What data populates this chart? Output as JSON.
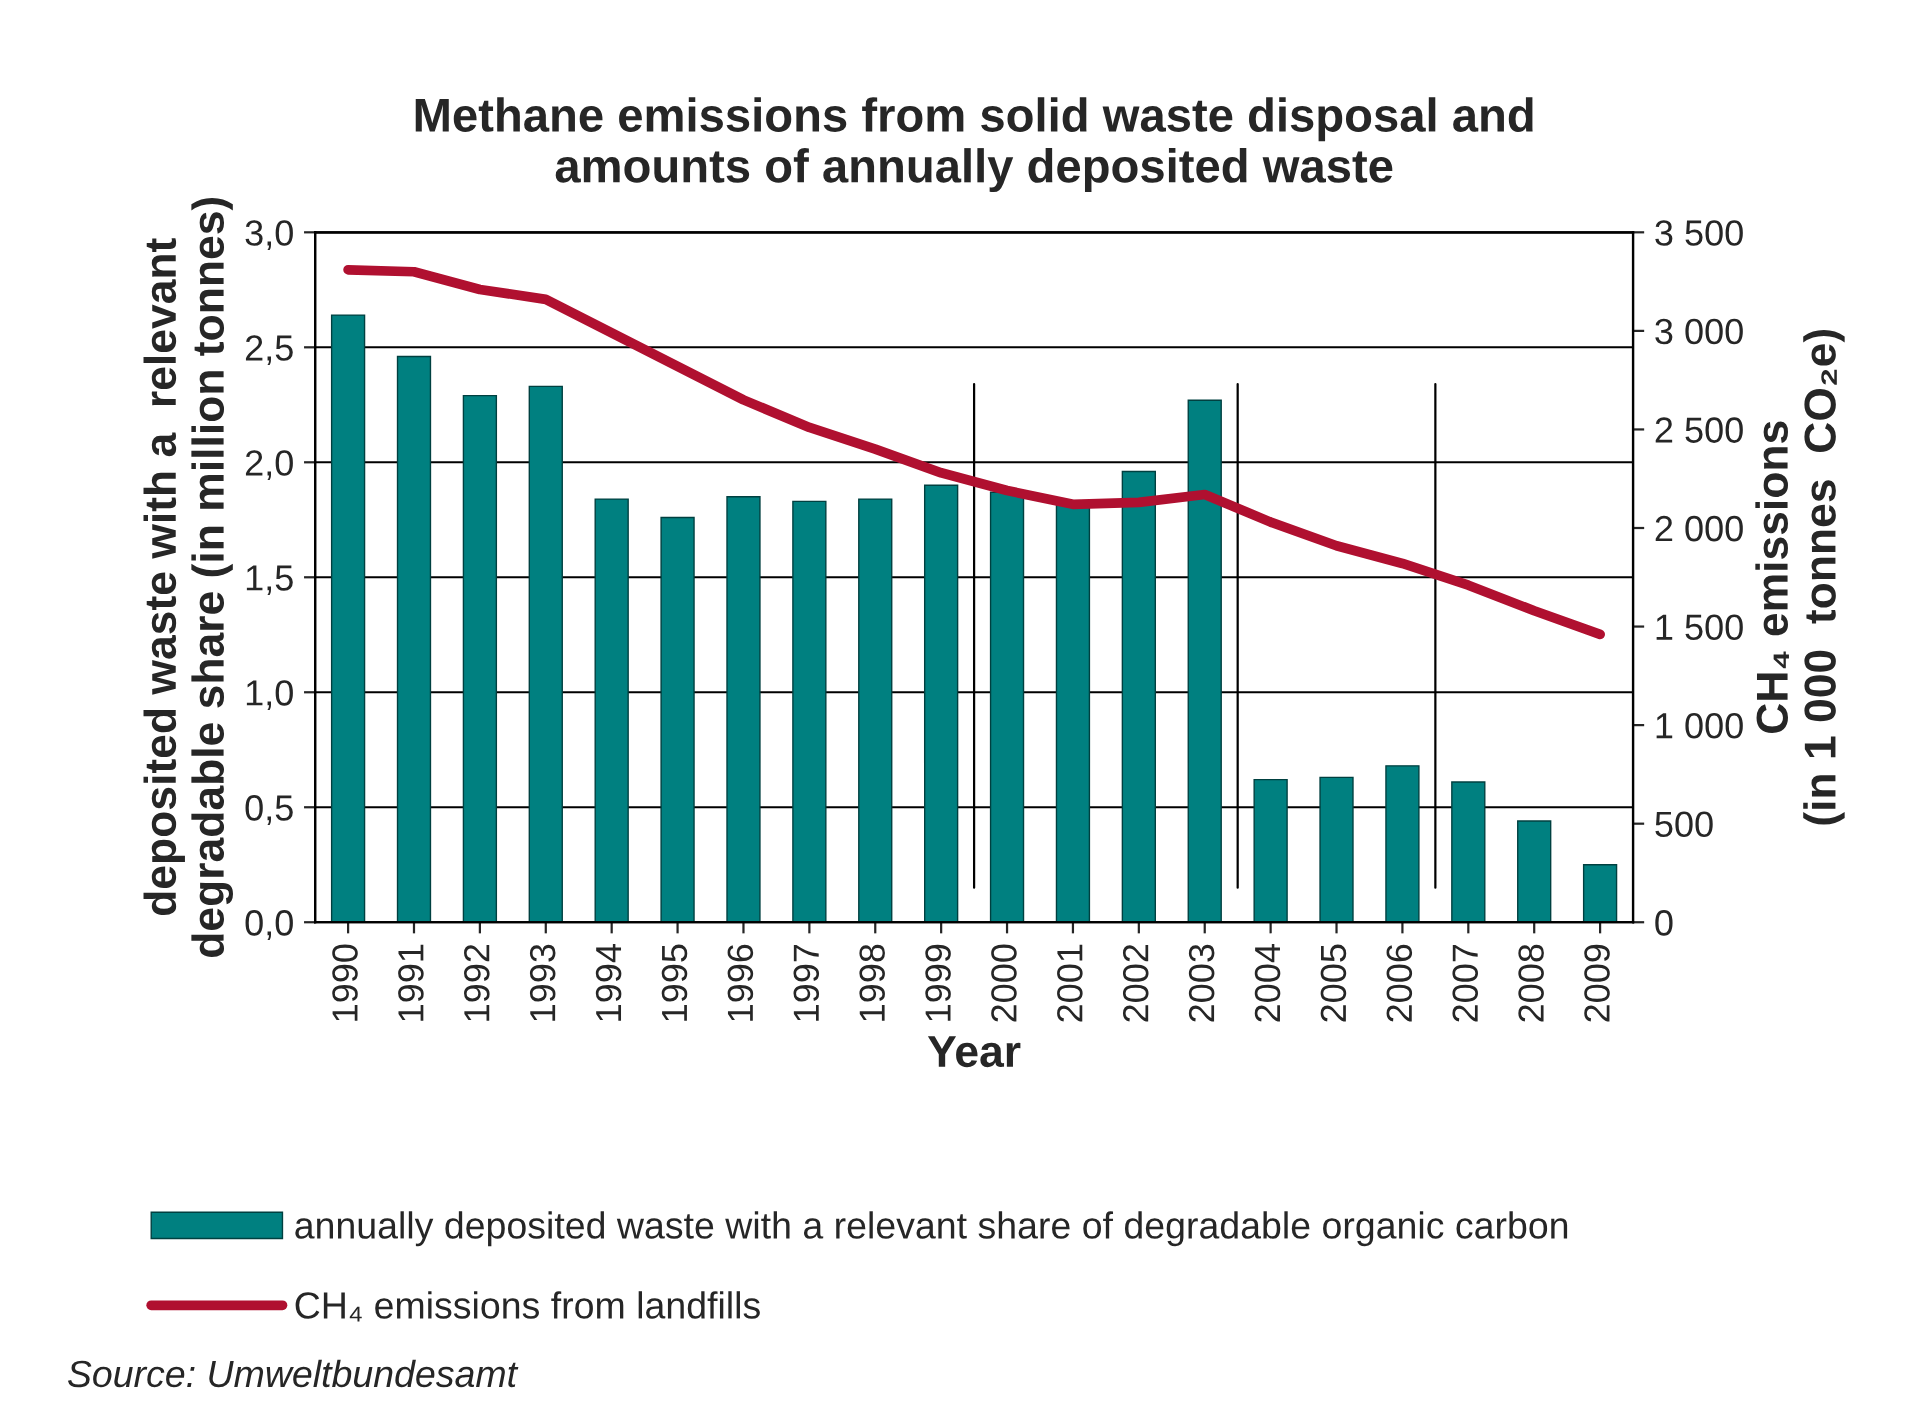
{
  "chart_data": {
    "type": "bar",
    "title": "Methane emissions from solid waste disposal and\namounts of annually deposited waste",
    "xlabel": "Year",
    "ylabel": "deposited waste with a  relevant\ndegradable share (in million tonnes)",
    "y2label": "CH₄ emissions\n(in 1 000  tonnes  CO₂e)",
    "x": [
      1990,
      1991,
      1992,
      1993,
      1994,
      1995,
      1996,
      1997,
      1998,
      1999,
      2000,
      2001,
      2002,
      2003,
      2004,
      2005,
      2006,
      2007,
      2008,
      2009
    ],
    "xlim": [
      1989.5,
      2009.5
    ],
    "xticks": [
      1990,
      1991,
      1992,
      1993,
      1994,
      1995,
      1996,
      1997,
      1998,
      1999,
      2000,
      2001,
      2002,
      2003,
      2004,
      2005,
      2006,
      2007,
      2008,
      2009
    ],
    "series": [
      {
        "name": "annually deposited waste with a relevant share of degradable organic carbon",
        "color": "#008080",
        "values": [
          2.64,
          2.46,
          2.29,
          2.33,
          1.84,
          1.76,
          1.85,
          1.83,
          1.84,
          1.9,
          1.87,
          1.82,
          1.96,
          2.27,
          0.62,
          0.63,
          0.68,
          0.61,
          0.44,
          0.25
        ]
      },
      {
        "name": "CH₄ emissions from landfills",
        "type": "line",
        "axis": "y2",
        "color": "#b01030",
        "values": [
          3310,
          3300,
          3210,
          3160,
          2990,
          2820,
          2650,
          2510,
          2400,
          2280,
          2190,
          2120,
          2130,
          2170,
          2030,
          1910,
          1820,
          1710,
          1580,
          1460
        ]
      }
    ],
    "ylim": [
      0,
      3
    ],
    "yticks": [
      {
        "value": 0,
        "label": "0,0"
      },
      {
        "value": 0.5,
        "label": "0,5"
      },
      {
        "value": 1,
        "label": "1,0"
      },
      {
        "value": 1.5,
        "label": "1,5"
      },
      {
        "value": 2,
        "label": "2,0"
      },
      {
        "value": 2.5,
        "label": "2,5"
      },
      {
        "value": 3,
        "label": "3,0"
      }
    ],
    "y2lim": [
      0,
      3500
    ],
    "y2ticks": [
      0,
      {
        "value": 500,
        "label": "500"
      },
      {
        "value": 1000,
        "label": "1 000"
      },
      {
        "value": 1500,
        "label": "1 500"
      },
      {
        "value": 2000,
        "label": "2 000"
      },
      {
        "value": 2500,
        "label": "2 500"
      },
      {
        "value": 3000,
        "label": "3 000"
      },
      {
        "value": 3500,
        "label": "3 500"
      }
    ],
    "ref_lines": [
      {
        "axis": "x",
        "value": 1999.5,
        "color": "#000000"
      },
      {
        "axis": "x",
        "value": 2003.5,
        "color": "#000000"
      },
      {
        "axis": "x",
        "value": 2006.5,
        "color": "#000000"
      }
    ],
    "grid": "y",
    "legend": "bottom",
    "annotations": [
      "Source: Umweltbundesamt"
    ]
  }
}
